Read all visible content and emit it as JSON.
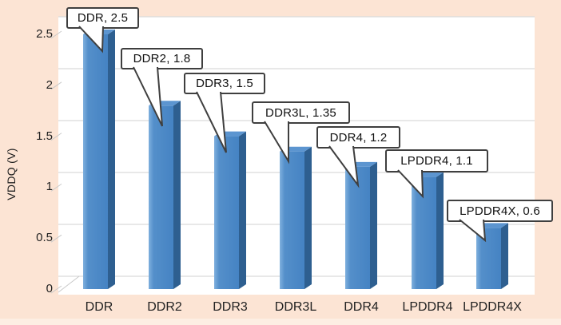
{
  "chart_data": {
    "type": "bar",
    "style": "3d-column",
    "title": "",
    "xlabel": "",
    "ylabel": "VDDQ (V)",
    "ylim": [
      0,
      2.5
    ],
    "grid": true,
    "legend": "none",
    "y_ticks": [
      "0",
      "0.5",
      "1",
      "1.5",
      "2",
      "2.5"
    ],
    "categories": [
      "DDR",
      "DDR2",
      "DDR3",
      "DDR3L",
      "DDR4",
      "LPDDR4",
      "LPDDR4X"
    ],
    "values": [
      2.5,
      1.8,
      1.5,
      1.35,
      1.2,
      1.1,
      0.6
    ],
    "data_labels": [
      "DDR, 2.5",
      "DDR2, 1.8",
      "DDR3, 1.5",
      "DDR3L, 1.35",
      "DDR4, 1.2",
      "LPDDR4, 1.1",
      "LPDDR4X, 0.6"
    ]
  },
  "colors": {
    "page_background": "#fce4d4",
    "bottom_margin": "#fdeee3",
    "plot_background": "#ffffff",
    "gridline": "#d9d9d9",
    "axis_tick": "#c9c9c9",
    "bar_front_light": "#7fb0de",
    "bar_front_mid": "#548fca",
    "bar_front": "#4583c3",
    "bar_side": "#2e5f90",
    "bar_top": "#5c95d0",
    "callout_border": "#3f3f3f",
    "callout_fill": "#ffffff",
    "text": "#1a1a1a"
  }
}
